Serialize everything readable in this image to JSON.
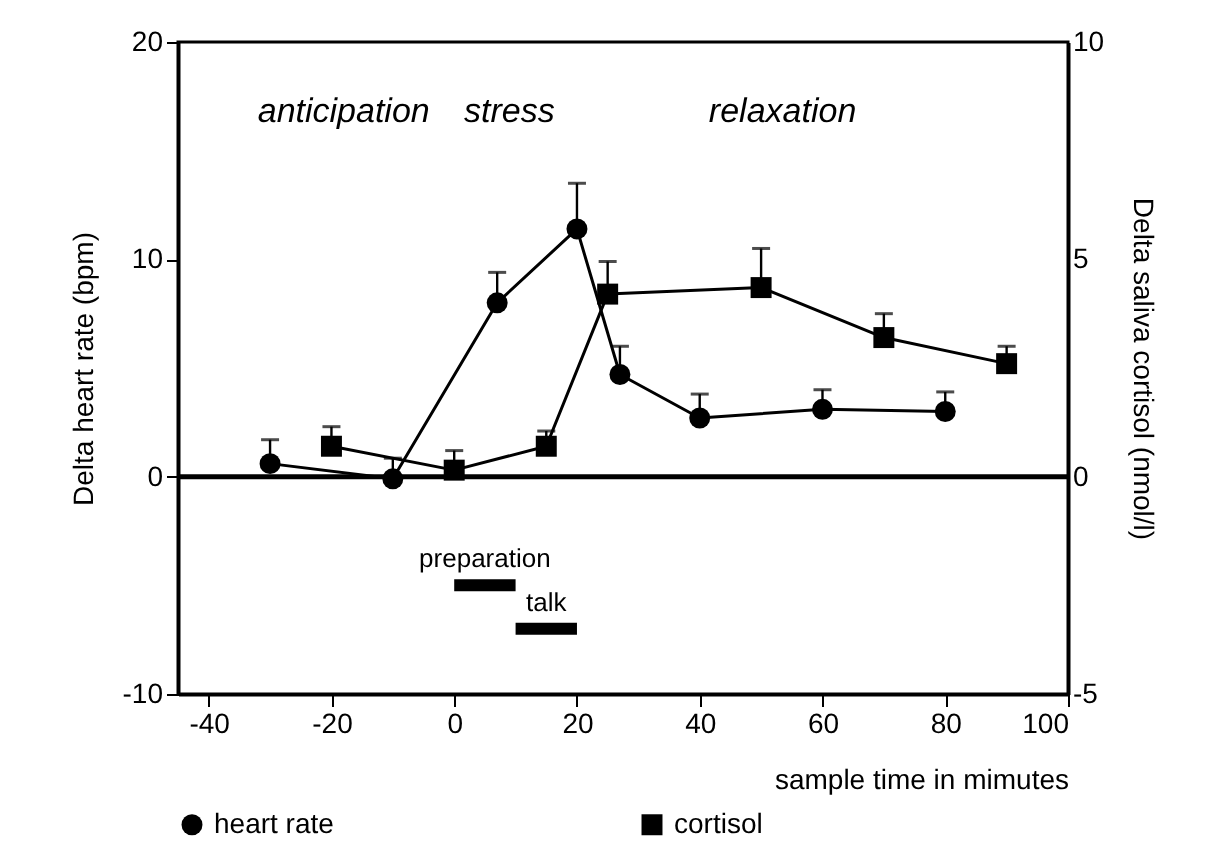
{
  "chart_data": {
    "type": "line",
    "xlabel": "sample time in mimutes",
    "ylabel": "Delta heart rate (bpm)",
    "y2label": "Delta saliva cortisol (nmol/l)",
    "xlim": [
      -45,
      100
    ],
    "xticks": [
      -40,
      -20,
      0,
      20,
      40,
      60,
      80,
      100
    ],
    "ylim": [
      -10,
      20
    ],
    "yticks": [
      -10,
      0,
      10,
      20
    ],
    "y2lim": [
      -5,
      10
    ],
    "y2ticks": [
      -5,
      0,
      5,
      10
    ],
    "annotations": [
      "anticipation",
      "stress",
      "relaxation"
    ],
    "ref_lines": [
      {
        "axis": "y",
        "value": 0,
        "color": "#000000"
      }
    ],
    "legend": "bottom",
    "grid": false,
    "line_style": "solid",
    "series": [
      {
        "name": "heart rate",
        "color": "#000000",
        "marker": "circle",
        "x": [
          -30,
          -10,
          7,
          20,
          27,
          40,
          60,
          80
        ],
        "values": [
          0.6,
          -0.1,
          8.0,
          11.4,
          4.7,
          2.7,
          3.1,
          3.0
        ],
        "errors": [
          [
            0.6,
            1.7
          ],
          [
            -0.1,
            0.85
          ],
          [
            8.0,
            9.4
          ],
          [
            11.4,
            13.5
          ],
          [
            4.7,
            6.0
          ],
          [
            2.7,
            3.8
          ],
          [
            3.1,
            4.0
          ],
          [
            3.0,
            3.9
          ]
        ]
      },
      {
        "name": "cortisol",
        "color": "#000000",
        "marker": "square",
        "axis": "y2",
        "x": [
          -20,
          0,
          15,
          25,
          50,
          70,
          90
        ],
        "values": [
          0.7,
          0.15,
          0.7,
          4.2,
          4.35,
          3.2,
          2.6
        ],
        "errors": [
          [
            0.7,
            1.15
          ],
          [
            0.15,
            0.6
          ],
          [
            0.7,
            1.05
          ],
          [
            4.2,
            4.95
          ],
          [
            4.35,
            5.25
          ],
          [
            3.2,
            3.75
          ],
          [
            2.6,
            3.0
          ]
        ]
      },
      {
        "name": "preparation",
        "color": "#000000",
        "marker": "none",
        "x": [
          0,
          10
        ],
        "values": [
          -5,
          -5
        ]
      },
      {
        "name": "talk",
        "color": "#000000",
        "marker": "none",
        "x": [
          10,
          20
        ],
        "values": [
          -7,
          -7
        ]
      }
    ]
  }
}
